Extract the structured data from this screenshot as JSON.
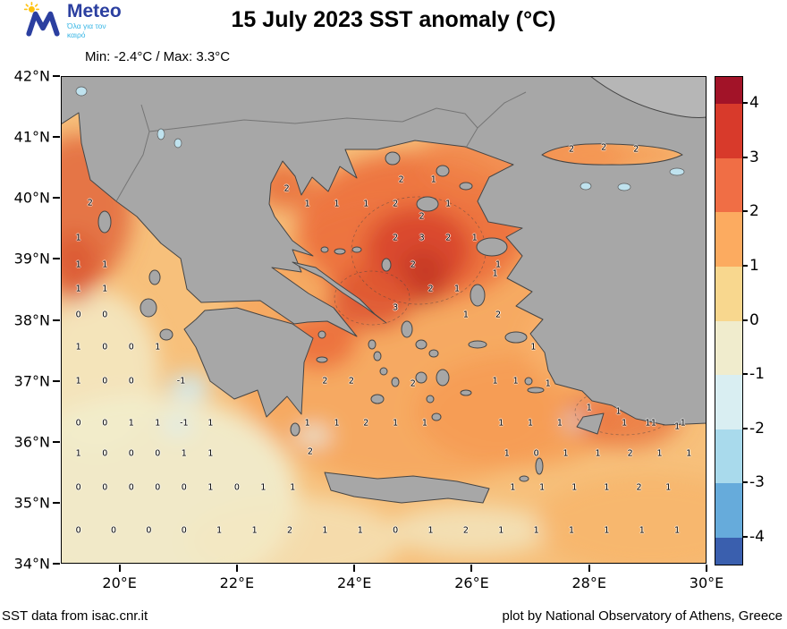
{
  "header": {
    "logo": {
      "brand": "Meteo",
      "tagline": "Όλα για τον καιρό"
    },
    "title": "15 July 2023 SST anomaly (°C)",
    "minmax": "Min: -2.4°C / Max: 3.3°C"
  },
  "footer": {
    "left": "SST data from isac.cnr.it",
    "right": "plot by National Observatory of Athens, Greece"
  },
  "chart_data": {
    "type": "heatmap",
    "title": "15 July 2023 SST anomaly (°C)",
    "subtitle": "Min: -2.4°C / Max: 3.3°C",
    "units": "°C",
    "min": -2.4,
    "max": 3.3,
    "lon_range": [
      19,
      30
    ],
    "lat_range": [
      34,
      42
    ],
    "x_ticks": [
      {
        "label": "20°E",
        "lon": 20
      },
      {
        "label": "22°E",
        "lon": 22
      },
      {
        "label": "24°E",
        "lon": 24
      },
      {
        "label": "26°E",
        "lon": 26
      },
      {
        "label": "28°E",
        "lon": 28
      },
      {
        "label": "30°E",
        "lon": 30
      }
    ],
    "y_ticks": [
      {
        "label": "42°N",
        "lat": 42
      },
      {
        "label": "41°N",
        "lat": 41
      },
      {
        "label": "40°N",
        "lat": 40
      },
      {
        "label": "39°N",
        "lat": 39
      },
      {
        "label": "38°N",
        "lat": 38
      },
      {
        "label": "37°N",
        "lat": 37
      },
      {
        "label": "36°N",
        "lat": 36
      },
      {
        "label": "35°N",
        "lat": 35
      },
      {
        "label": "34°N",
        "lat": 34
      }
    ],
    "colorbar": {
      "tick_labels": [
        "4",
        "3",
        "2",
        "1",
        "0",
        "-1",
        "-2",
        "-3",
        "-4"
      ],
      "colors": [
        "#a21328",
        "#d83a2b",
        "#f06e45",
        "#fcab60",
        "#f8d78e",
        "#f0eccd",
        "#d9eef2",
        "#a9daec",
        "#66abdb",
        "#3a5fae"
      ]
    },
    "value_labels_format": "[lon, lat, anomaly_degC]",
    "value_labels": [
      [
        19.5,
        39.92,
        2
      ],
      [
        19.3,
        39.35,
        1
      ],
      [
        19.3,
        38.9,
        1
      ],
      [
        19.75,
        38.9,
        1
      ],
      [
        19.3,
        38.5,
        1
      ],
      [
        19.75,
        38.5,
        1
      ],
      [
        19.3,
        38.08,
        0
      ],
      [
        19.75,
        38.08,
        0
      ],
      [
        19.3,
        37.55,
        1
      ],
      [
        19.75,
        37.55,
        0
      ],
      [
        20.2,
        37.55,
        0
      ],
      [
        20.65,
        37.55,
        1
      ],
      [
        19.3,
        37.0,
        1
      ],
      [
        19.75,
        37.0,
        0
      ],
      [
        20.2,
        37.0,
        0
      ],
      [
        21.05,
        37.0,
        -1
      ],
      [
        19.3,
        36.3,
        0
      ],
      [
        19.75,
        36.3,
        0
      ],
      [
        20.2,
        36.3,
        1
      ],
      [
        20.65,
        36.3,
        1
      ],
      [
        21.1,
        36.3,
        -1
      ],
      [
        21.55,
        36.3,
        1
      ],
      [
        19.3,
        35.8,
        1
      ],
      [
        19.75,
        35.8,
        0
      ],
      [
        20.2,
        35.8,
        0
      ],
      [
        20.65,
        35.8,
        0
      ],
      [
        21.1,
        35.8,
        1
      ],
      [
        21.55,
        35.8,
        1
      ],
      [
        19.3,
        35.25,
        0
      ],
      [
        19.75,
        35.25,
        0
      ],
      [
        20.2,
        35.25,
        0
      ],
      [
        20.65,
        35.25,
        0
      ],
      [
        21.1,
        35.25,
        0
      ],
      [
        21.55,
        35.25,
        1
      ],
      [
        22.0,
        35.25,
        0
      ],
      [
        22.45,
        35.25,
        1
      ],
      [
        22.95,
        35.25,
        1
      ],
      [
        19.3,
        34.55,
        0
      ],
      [
        19.9,
        34.55,
        0
      ],
      [
        20.5,
        34.55,
        0
      ],
      [
        21.1,
        34.55,
        0
      ],
      [
        21.7,
        34.55,
        1
      ],
      [
        22.3,
        34.55,
        1
      ],
      [
        22.9,
        34.55,
        2
      ],
      [
        23.5,
        34.55,
        1
      ],
      [
        24.1,
        34.55,
        1
      ],
      [
        24.7,
        34.55,
        0
      ],
      [
        25.3,
        34.55,
        1
      ],
      [
        25.9,
        34.55,
        2
      ],
      [
        26.5,
        34.55,
        1
      ],
      [
        27.1,
        34.55,
        1
      ],
      [
        27.7,
        34.55,
        1
      ],
      [
        28.3,
        34.55,
        1
      ],
      [
        28.9,
        34.55,
        1
      ],
      [
        29.5,
        34.55,
        1
      ],
      [
        27.7,
        40.8,
        2
      ],
      [
        28.25,
        40.82,
        2
      ],
      [
        28.8,
        40.8,
        2
      ],
      [
        22.85,
        40.15,
        2
      ],
      [
        24.8,
        40.3,
        2
      ],
      [
        25.35,
        40.3,
        1
      ],
      [
        23.2,
        39.9,
        1
      ],
      [
        23.7,
        39.9,
        1
      ],
      [
        24.2,
        39.9,
        1
      ],
      [
        24.7,
        39.9,
        2
      ],
      [
        25.15,
        39.7,
        2
      ],
      [
        25.6,
        39.9,
        1
      ],
      [
        24.7,
        39.35,
        2
      ],
      [
        25.15,
        39.35,
        3
      ],
      [
        25.6,
        39.35,
        2
      ],
      [
        26.05,
        39.35,
        1
      ],
      [
        25.0,
        38.9,
        2
      ],
      [
        26.45,
        38.9,
        1
      ],
      [
        26.4,
        38.75,
        1
      ],
      [
        25.3,
        38.5,
        2
      ],
      [
        25.75,
        38.5,
        1
      ],
      [
        24.7,
        38.2,
        3
      ],
      [
        25.9,
        38.08,
        1
      ],
      [
        26.45,
        38.08,
        2
      ],
      [
        23.5,
        37.0,
        2
      ],
      [
        23.95,
        37.0,
        2
      ],
      [
        25.0,
        36.95,
        2
      ],
      [
        23.2,
        36.3,
        1
      ],
      [
        23.7,
        36.3,
        1
      ],
      [
        24.2,
        36.3,
        2
      ],
      [
        24.7,
        36.3,
        1
      ],
      [
        25.2,
        36.3,
        1
      ],
      [
        23.25,
        35.83,
        2
      ],
      [
        27.05,
        37.55,
        1
      ],
      [
        26.4,
        37.0,
        1
      ],
      [
        26.75,
        37.0,
        1
      ],
      [
        27.3,
        36.95,
        1
      ],
      [
        28.0,
        36.55,
        1
      ],
      [
        28.5,
        36.5,
        1
      ],
      [
        29.0,
        36.3,
        1
      ],
      [
        29.5,
        36.25,
        1
      ],
      [
        26.5,
        36.3,
        1
      ],
      [
        27.0,
        36.3,
        1
      ],
      [
        27.5,
        36.3,
        1
      ],
      [
        28.6,
        36.3,
        1
      ],
      [
        29.1,
        36.3,
        1
      ],
      [
        29.6,
        36.3,
        1
      ],
      [
        26.6,
        35.8,
        1
      ],
      [
        27.1,
        35.8,
        0
      ],
      [
        27.6,
        35.8,
        1
      ],
      [
        28.15,
        35.8,
        1
      ],
      [
        28.7,
        35.8,
        2
      ],
      [
        29.2,
        35.8,
        1
      ],
      [
        29.7,
        35.8,
        1
      ],
      [
        26.7,
        35.25,
        1
      ],
      [
        27.2,
        35.25,
        1
      ],
      [
        27.75,
        35.25,
        1
      ],
      [
        28.3,
        35.25,
        1
      ],
      [
        28.85,
        35.25,
        2
      ],
      [
        29.35,
        35.25,
        1
      ]
    ]
  }
}
